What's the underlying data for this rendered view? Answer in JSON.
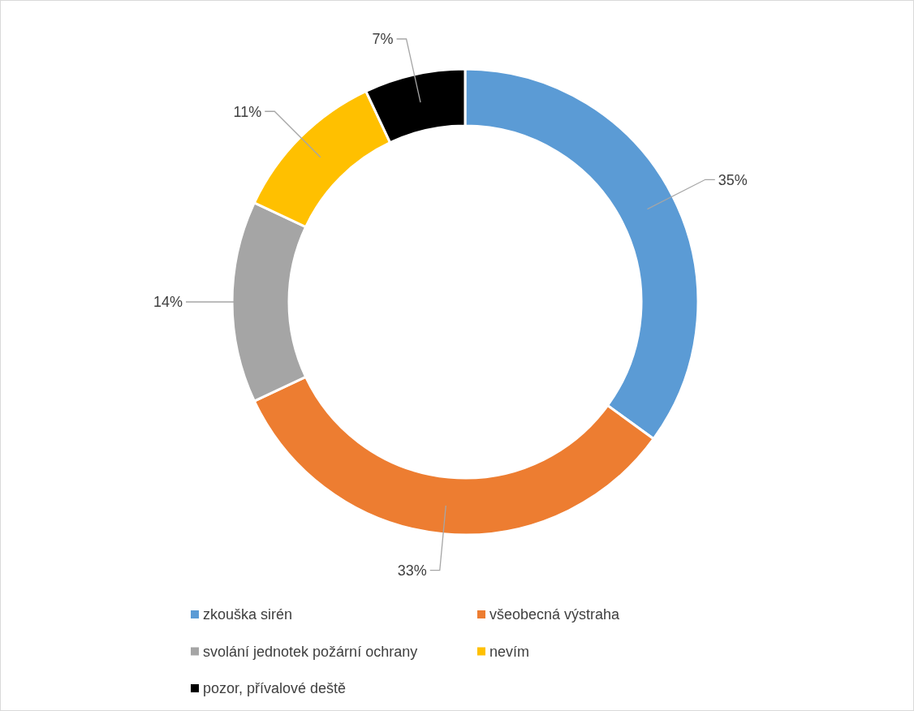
{
  "chart_data": {
    "type": "donut",
    "categories": [
      "zkouška sirén",
      "všeobecná výstraha",
      "svolání jednotek požární ochrany",
      "nevím",
      "pozor, přívalové deště"
    ],
    "values": [
      35,
      33,
      14,
      11,
      7
    ],
    "colors": [
      "#5b9bd5",
      "#ed7d31",
      "#a5a5a5",
      "#ffc000",
      "#000000"
    ],
    "value_labels": [
      "35%",
      "33%",
      "14%",
      "11%",
      "7%"
    ],
    "legend": "bottom"
  }
}
